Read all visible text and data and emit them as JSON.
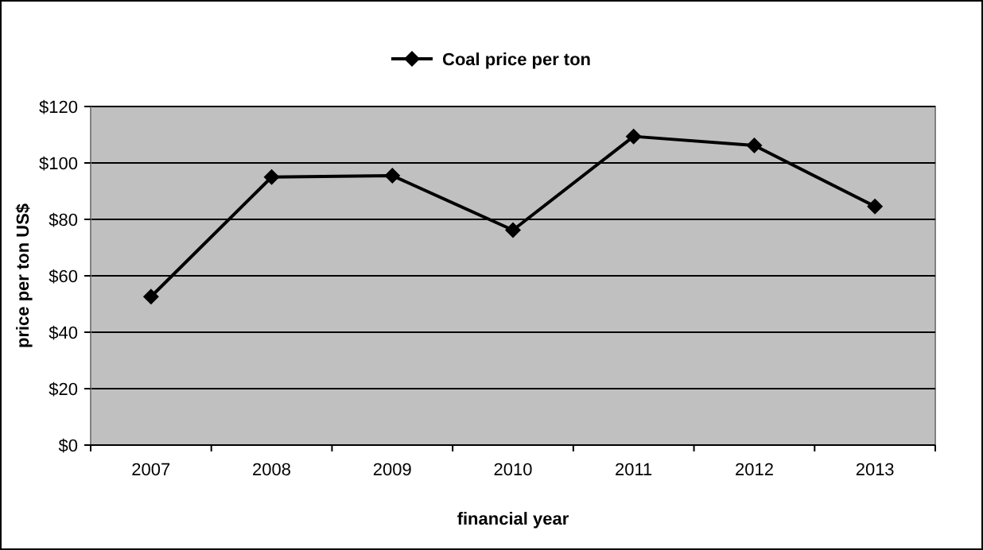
{
  "chart_data": {
    "type": "line",
    "xlabel": "financial year",
    "ylabel": "price per ton US$",
    "categories": [
      "2007",
      "2008",
      "2009",
      "2010",
      "2011",
      "2012",
      "2013"
    ],
    "series": [
      {
        "name": "Coal price per ton",
        "color": "#000000",
        "values": [
          52.6,
          95,
          95.5,
          76.2,
          109.4,
          106.2,
          84.6
        ]
      }
    ],
    "ylim": [
      0,
      120
    ],
    "yticks": [
      {
        "value": 0,
        "label": "$0"
      },
      {
        "value": 20,
        "label": "$20"
      },
      {
        "value": 40,
        "label": "$40"
      },
      {
        "value": 60,
        "label": "$60"
      },
      {
        "value": 80,
        "label": "$80"
      },
      {
        "value": 100,
        "label": "$100"
      },
      {
        "value": 120,
        "label": "$120"
      }
    ],
    "grid": "y",
    "legend": "top",
    "marker": "diamond",
    "line_style": "solid"
  }
}
